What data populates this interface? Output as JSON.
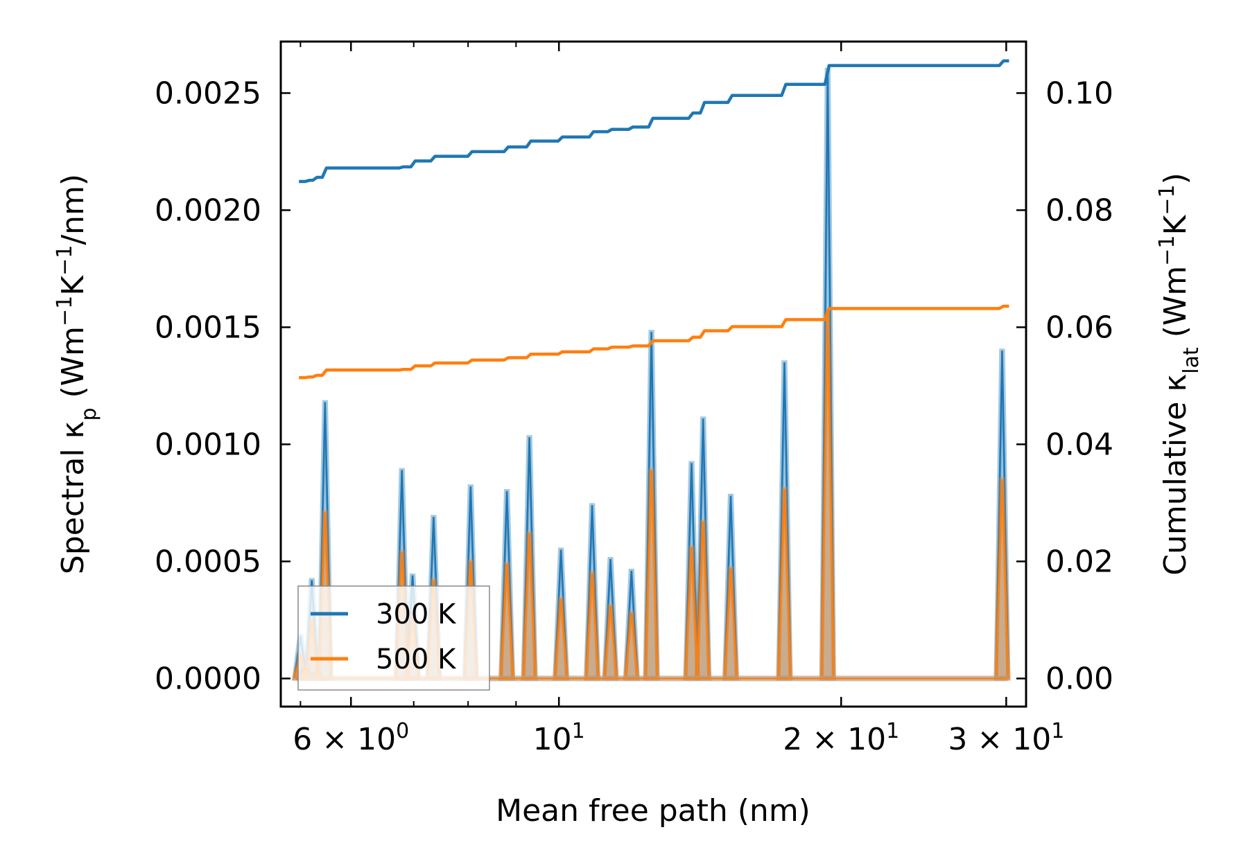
{
  "chart_data": {
    "type": "line",
    "xlabel": "Mean free path (nm)",
    "ylabel_left": {
      "prefix": "Spectral κ",
      "sub": "p",
      "unit_open": " (Wm",
      "sup1": "−1",
      "unit_mid": "K",
      "sup2": "−1",
      "unit_close": "/nm)"
    },
    "ylabel_right": {
      "prefix": "Cumulative κ",
      "sub": "lat",
      "unit_open": " (Wm",
      "sup1": "−1",
      "unit_mid": "K",
      "sup2": "−1",
      "unit_close": ")"
    },
    "xscale": "log",
    "xlim": [
      5.05,
      31.5
    ],
    "ylim_left": [
      -0.00012,
      0.00272
    ],
    "ylim_right": [
      -0.0048,
      0.1088
    ],
    "x_major_ticks": [
      {
        "value": 6,
        "base": "6 × 10",
        "exp": "0"
      },
      {
        "value": 10,
        "base": "10",
        "exp": "1"
      },
      {
        "value": 20,
        "base": "2 × 10",
        "exp": "1"
      },
      {
        "value": 30,
        "base": "3 × 10",
        "exp": "1"
      }
    ],
    "x_minor_ticks": [
      5.3,
      7,
      8,
      9,
      40
    ],
    "y_left_ticks": [
      "0.0000",
      "0.0005",
      "0.0010",
      "0.0015",
      "0.0020",
      "0.0025"
    ],
    "y_left_tick_values": [
      0,
      0.0005,
      0.001,
      0.0015,
      0.002,
      0.0025
    ],
    "y_right_ticks": [
      "0.00",
      "0.02",
      "0.04",
      "0.06",
      "0.08",
      "0.10"
    ],
    "y_right_tick_values": [
      0,
      0.02,
      0.04,
      0.06,
      0.08,
      0.1
    ],
    "legend": {
      "position": "lower-left",
      "entries": [
        "300 K",
        "500 K"
      ]
    },
    "series_colors": {
      "300 K": "#1f77b4",
      "500 K": "#ff7f0e"
    },
    "spectral_300K": [
      [
        5.3,
        0.00018
      ],
      [
        5.36,
        7e-05
      ],
      [
        5.45,
        0.00042
      ],
      [
        5.52,
        3e-05
      ],
      [
        5.63,
        0.00118
      ],
      [
        6.8,
        0.00089
      ],
      [
        6.98,
        0.00044
      ],
      [
        7.35,
        0.00069
      ],
      [
        8.05,
        0.00082
      ],
      [
        8.8,
        0.0008
      ],
      [
        9.3,
        0.00103
      ],
      [
        10.05,
        0.00055
      ],
      [
        10.85,
        0.00074
      ],
      [
        11.35,
        0.00051
      ],
      [
        11.95,
        0.00046
      ],
      [
        12.55,
        0.00148
      ],
      [
        13.85,
        0.00092
      ],
      [
        14.25,
        0.00111
      ],
      [
        15.25,
        0.00078
      ],
      [
        17.4,
        0.00135
      ],
      [
        19.35,
        0.0026
      ],
      [
        29.7,
        0.0014
      ]
    ],
    "spectral_500K": [
      [
        5.3,
        0.0001
      ],
      [
        5.36,
        4e-05
      ],
      [
        5.45,
        0.00025
      ],
      [
        5.52,
        2e-05
      ],
      [
        5.63,
        0.00071
      ],
      [
        6.8,
        0.00054
      ],
      [
        6.98,
        0.00027
      ],
      [
        7.35,
        0.00042
      ],
      [
        8.05,
        0.0005
      ],
      [
        8.8,
        0.00049
      ],
      [
        9.3,
        0.00062
      ],
      [
        10.05,
        0.00034
      ],
      [
        10.85,
        0.00045
      ],
      [
        11.35,
        0.00031
      ],
      [
        11.95,
        0.00028
      ],
      [
        12.55,
        0.00089
      ],
      [
        13.85,
        0.00056
      ],
      [
        14.25,
        0.00067
      ],
      [
        15.25,
        0.00047
      ],
      [
        17.4,
        0.00081
      ],
      [
        19.35,
        0.00156
      ],
      [
        29.7,
        0.00085
      ]
    ],
    "cumulative_300K": [
      [
        5.28,
        0.0849
      ],
      [
        5.4,
        0.0851
      ],
      [
        5.5,
        0.0856
      ],
      [
        5.63,
        0.0872
      ],
      [
        6.8,
        0.0874
      ],
      [
        7.0,
        0.0884
      ],
      [
        7.35,
        0.0892
      ],
      [
        8.05,
        0.09
      ],
      [
        8.8,
        0.0908
      ],
      [
        9.3,
        0.0918
      ],
      [
        10.05,
        0.0925
      ],
      [
        10.85,
        0.0934
      ],
      [
        11.35,
        0.0938
      ],
      [
        11.95,
        0.0942
      ],
      [
        12.55,
        0.0957
      ],
      [
        13.85,
        0.0966
      ],
      [
        14.25,
        0.0984
      ],
      [
        15.25,
        0.0996
      ],
      [
        17.4,
        0.1015
      ],
      [
        19.35,
        0.1047
      ],
      [
        29.7,
        0.1055
      ]
    ],
    "cumulative_500K": [
      [
        5.28,
        0.0514
      ],
      [
        5.4,
        0.0515
      ],
      [
        5.5,
        0.0518
      ],
      [
        5.63,
        0.0527
      ],
      [
        6.8,
        0.0528
      ],
      [
        7.0,
        0.0534
      ],
      [
        7.35,
        0.0539
      ],
      [
        8.05,
        0.0544
      ],
      [
        8.8,
        0.0548
      ],
      [
        9.3,
        0.0554
      ],
      [
        10.05,
        0.0558
      ],
      [
        10.85,
        0.0563
      ],
      [
        11.35,
        0.0566
      ],
      [
        11.95,
        0.0568
      ],
      [
        12.55,
        0.0577
      ],
      [
        13.85,
        0.0583
      ],
      [
        14.25,
        0.0594
      ],
      [
        15.25,
        0.0601
      ],
      [
        17.4,
        0.0613
      ],
      [
        19.35,
        0.0632
      ],
      [
        29.7,
        0.0636
      ]
    ]
  }
}
